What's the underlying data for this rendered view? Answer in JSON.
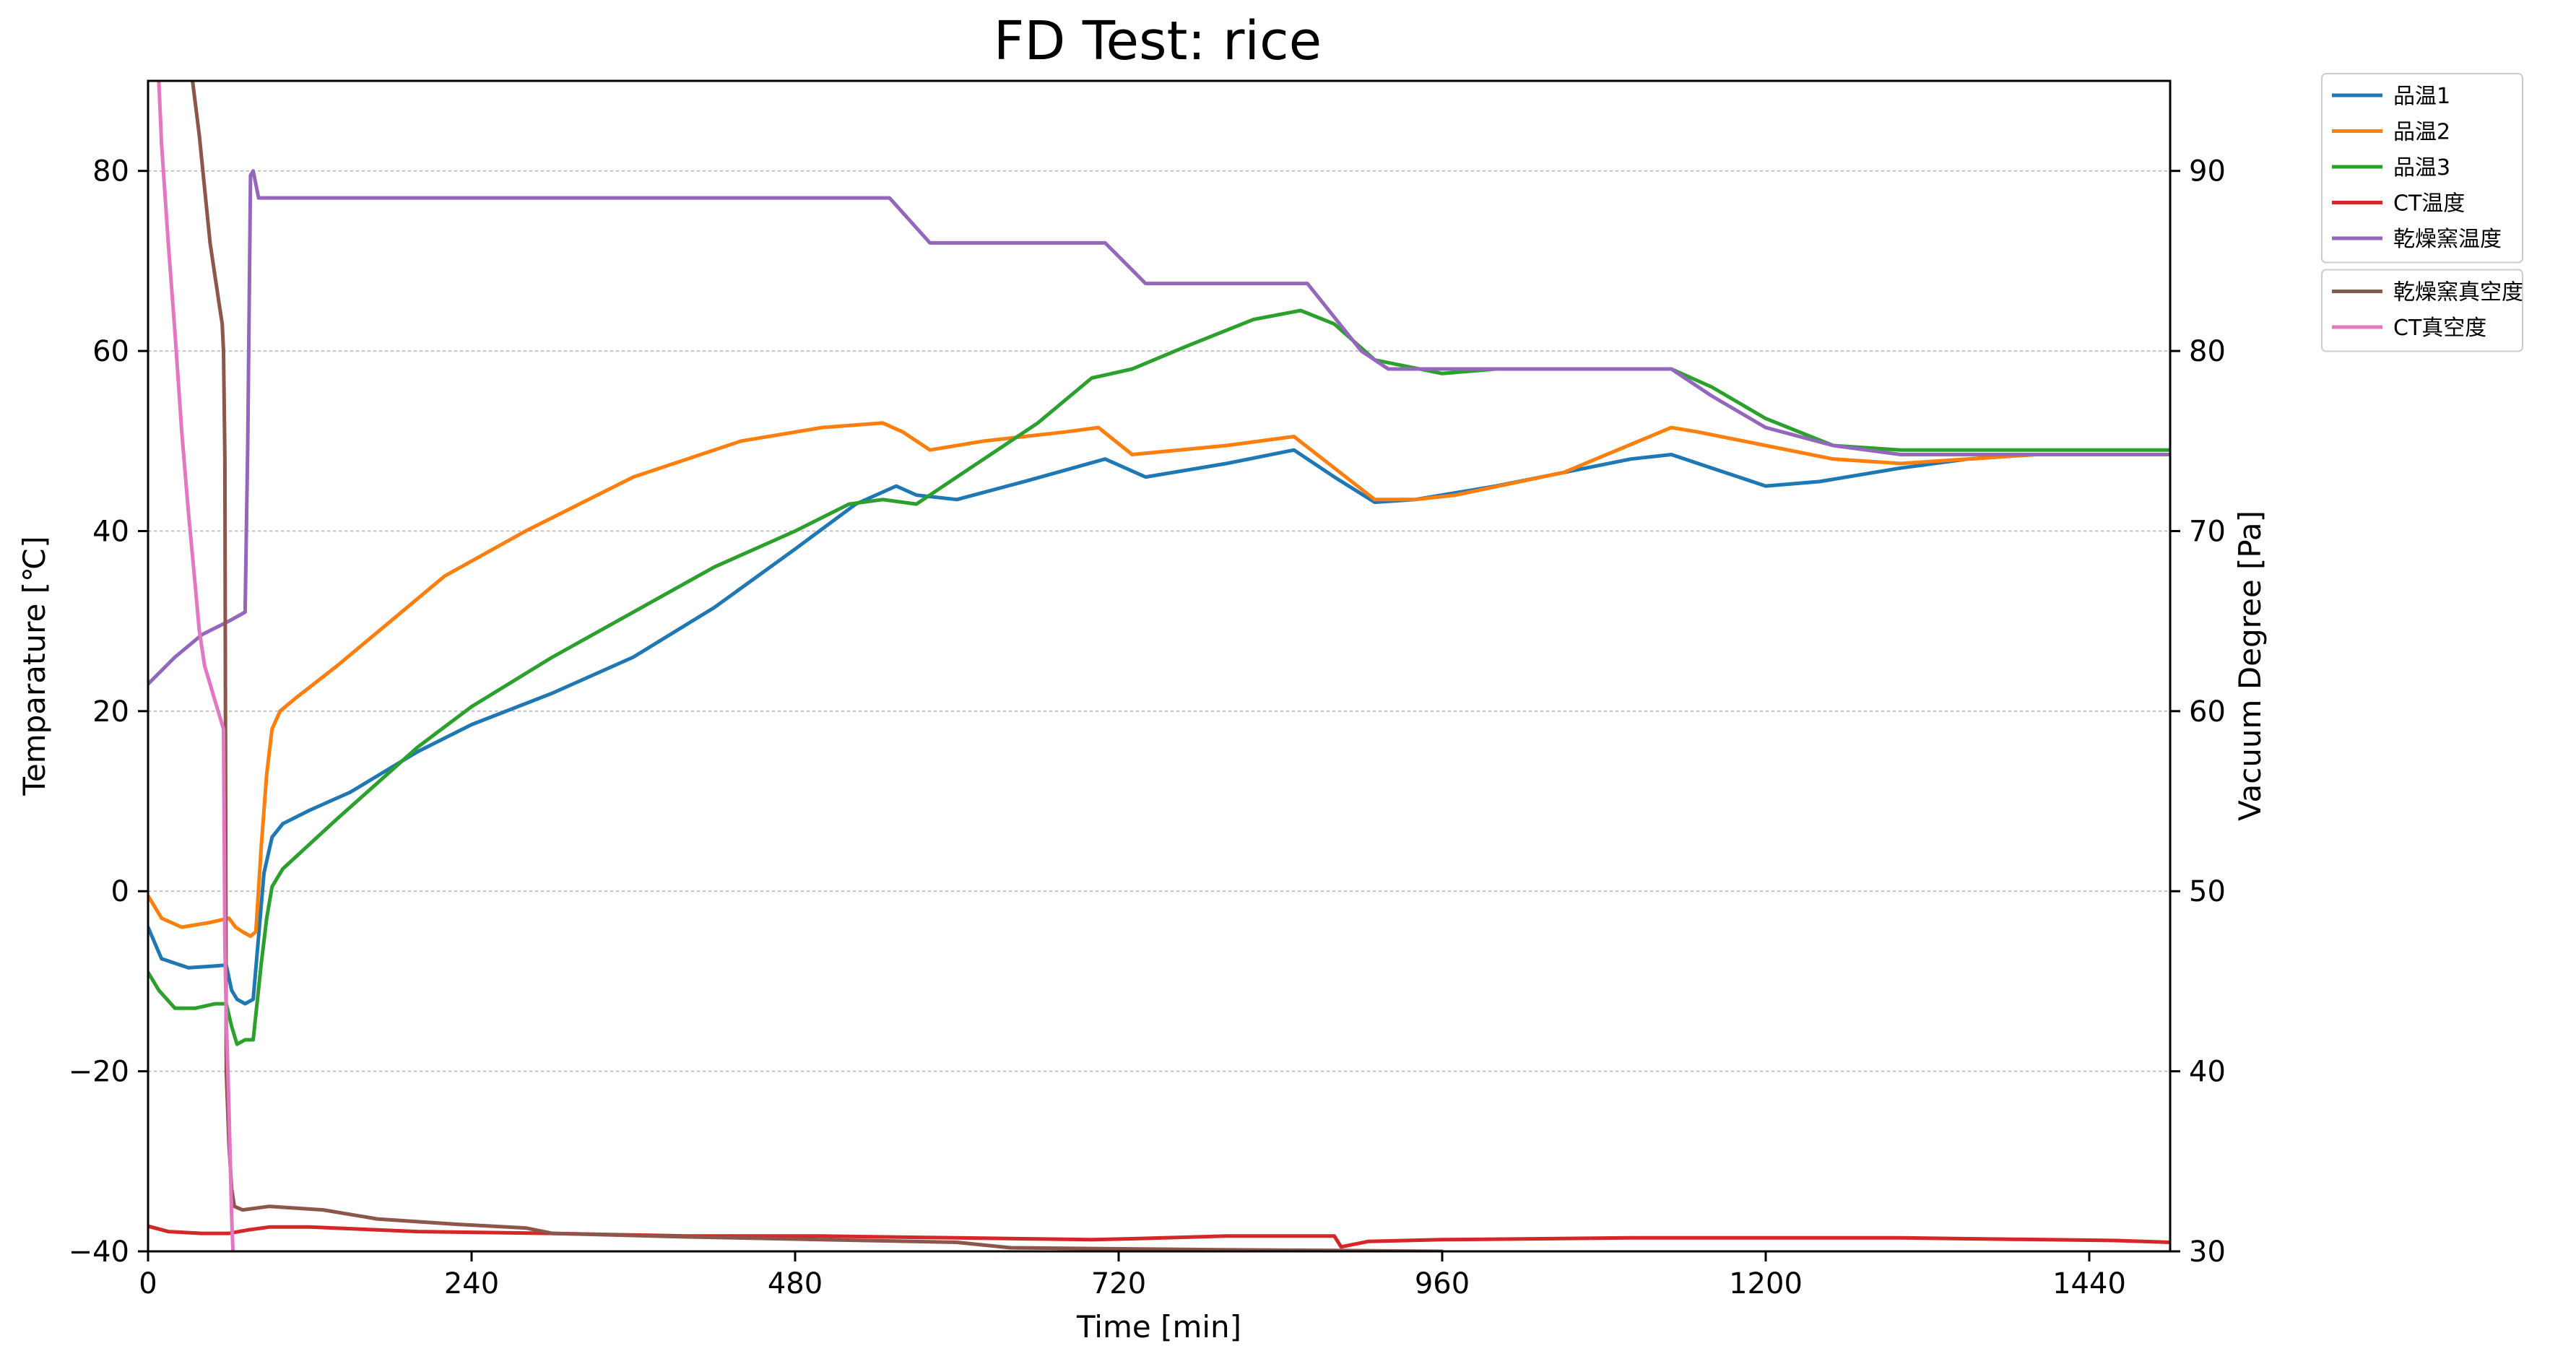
{
  "chart_data": {
    "type": "line",
    "title": "FD Test: rice",
    "xlabel": "Time [min]",
    "ylabel_left": "Temparature [℃]",
    "ylabel_right": "Vacuum Degree [Pa]",
    "xlim": [
      0,
      1500
    ],
    "ylim_left": [
      -40,
      90
    ],
    "ylim_right": [
      30,
      95
    ],
    "xticks": [
      0,
      240,
      480,
      720,
      960,
      1200,
      1440
    ],
    "yticks_left": [
      -40,
      -20,
      0,
      20,
      40,
      60,
      80
    ],
    "yticks_right": [
      30,
      40,
      50,
      60,
      70,
      80,
      90
    ],
    "grid": "horizontal dotted",
    "legend_placement": "outside right, two groups",
    "series": [
      {
        "name": "品温1",
        "axis": "left",
        "color": "#1f77b4",
        "x": [
          0,
          10,
          30,
          50,
          58,
          62,
          66,
          72,
          78,
          82,
          86,
          92,
          100,
          120,
          150,
          200,
          240,
          300,
          360,
          420,
          480,
          525,
          555,
          570,
          600,
          650,
          710,
          740,
          800,
          850,
          880,
          910,
          940,
          960,
          1000,
          1050,
          1100,
          1130,
          1160,
          1200,
          1240,
          1300,
          1350,
          1400,
          1500
        ],
        "y": [
          -4,
          -7.5,
          -8.5,
          -8.3,
          -8.2,
          -11,
          -12,
          -12.5,
          -12,
          -5,
          2,
          6,
          7.5,
          9,
          11,
          15.5,
          18.5,
          22,
          26,
          31.5,
          38,
          43,
          45,
          44,
          43.5,
          45.5,
          48,
          46,
          47.5,
          49,
          46,
          43.2,
          43.5,
          44,
          45,
          46.5,
          48,
          48.5,
          47,
          45,
          45.5,
          47,
          48,
          48.5,
          48.5
        ]
      },
      {
        "name": "品温2",
        "axis": "left",
        "color": "#ff7f0e",
        "x": [
          0,
          10,
          25,
          45,
          60,
          65,
          70,
          76,
          80,
          84,
          88,
          92,
          98,
          110,
          140,
          180,
          220,
          280,
          360,
          440,
          500,
          545,
          560,
          580,
          620,
          680,
          705,
          730,
          800,
          850,
          880,
          910,
          940,
          970,
          1050,
          1130,
          1150,
          1200,
          1250,
          1300,
          1400,
          1500
        ],
        "y": [
          -0.5,
          -3,
          -4,
          -3.5,
          -3,
          -4,
          -4.5,
          -5,
          -4.5,
          5,
          13,
          18,
          20,
          21.5,
          25,
          30,
          35,
          40,
          46,
          50,
          51.5,
          52,
          51,
          49,
          50,
          51,
          51.5,
          48.5,
          49.5,
          50.5,
          47,
          43.5,
          43.5,
          44,
          46.5,
          51.5,
          51,
          49.5,
          48,
          47.5,
          48.5,
          48.5
        ]
      },
      {
        "name": "品温3",
        "axis": "left",
        "color": "#2ca02c",
        "x": [
          0,
          8,
          20,
          35,
          50,
          58,
          62,
          66,
          72,
          78,
          84,
          88,
          92,
          100,
          140,
          200,
          240,
          300,
          360,
          420,
          480,
          520,
          545,
          570,
          590,
          620,
          660,
          700,
          730,
          770,
          820,
          855,
          880,
          910,
          960,
          1000,
          1050,
          1130,
          1160,
          1200,
          1250,
          1300,
          1400,
          1500
        ],
        "y": [
          -9,
          -11,
          -13,
          -13,
          -12.5,
          -12.5,
          -15,
          -17,
          -16.5,
          -16.5,
          -8,
          -3,
          0.5,
          2.5,
          8,
          16,
          20.5,
          26,
          31,
          36,
          40,
          43,
          43.5,
          43,
          45,
          48,
          52,
          57,
          58,
          60.5,
          63.5,
          64.5,
          63,
          59,
          57.5,
          58,
          58,
          58,
          56,
          52.5,
          49.5,
          49,
          49,
          49
        ]
      },
      {
        "name": "CT温度",
        "axis": "left",
        "color": "#d62728",
        "x": [
          0,
          15,
          40,
          60,
          75,
          90,
          120,
          200,
          300,
          400,
          500,
          600,
          700,
          730,
          800,
          880,
          885,
          905,
          960,
          1100,
          1300,
          1460,
          1500
        ],
        "y": [
          -37.2,
          -37.8,
          -38,
          -38,
          -37.6,
          -37.3,
          -37.3,
          -37.8,
          -38,
          -38.3,
          -38.3,
          -38.5,
          -38.7,
          -38.6,
          -38.3,
          -38.3,
          -39.5,
          -38.9,
          -38.7,
          -38.5,
          -38.5,
          -38.8,
          -39
        ]
      },
      {
        "name": "乾燥窯温度",
        "axis": "left",
        "color": "#9467bd",
        "x": [
          0,
          20,
          40,
          60,
          72,
          74,
          76,
          78,
          82,
          90,
          200,
          400,
          550,
          580,
          710,
          740,
          860,
          900,
          920,
          950,
          1130,
          1160,
          1200,
          1250,
          1300,
          1400,
          1500
        ],
        "y": [
          23,
          26,
          28.5,
          30,
          31,
          50,
          79.5,
          80,
          77,
          77,
          77,
          77,
          77,
          72,
          72,
          67.5,
          67.5,
          60,
          58,
          58,
          58,
          55,
          51.5,
          49.5,
          48.5,
          48.5,
          48.5
        ]
      },
      {
        "name": "乾燥窯真空度",
        "axis": "right",
        "color": "#8c564b",
        "x": [
          33,
          38,
          42,
          46,
          50,
          53,
          55,
          56,
          57,
          58,
          60,
          62,
          64,
          70,
          90,
          130,
          170,
          230,
          280,
          300,
          400,
          600,
          640,
          780,
          880,
          960
        ],
        "y": [
          95,
          92,
          89,
          86,
          84,
          82.5,
          81.5,
          80,
          74,
          40,
          36,
          33.5,
          32.5,
          32.3,
          32.5,
          32.3,
          31.8,
          31.5,
          31.3,
          31,
          30.8,
          30.5,
          30.2,
          30.1,
          30.05,
          30
        ]
      },
      {
        "name": "CT真空度",
        "axis": "right",
        "color": "#e377c2",
        "x": [
          8,
          10,
          15,
          20,
          25,
          30,
          35,
          38,
          42,
          46,
          50,
          54,
          56,
          57,
          58,
          60,
          62,
          63
        ],
        "y": [
          95,
          91.5,
          86,
          81,
          75.5,
          71,
          67,
          64.5,
          62.5,
          61.5,
          60.5,
          59.5,
          59,
          47,
          43,
          38,
          32,
          30
        ]
      }
    ],
    "legend_groups": [
      [
        "品温1",
        "品温2",
        "品温3",
        "CT温度",
        "乾燥窯温度"
      ],
      [
        "乾燥窯真空度",
        "CT真空度"
      ]
    ]
  }
}
